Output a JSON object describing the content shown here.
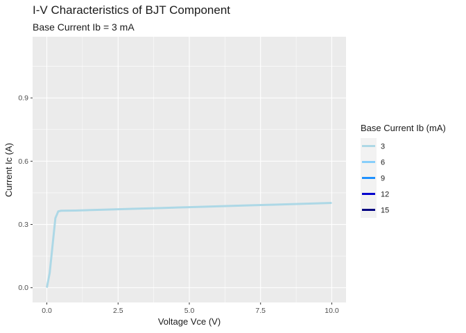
{
  "chart_data": {
    "type": "line",
    "title": "I-V Characteristics of BJT Component",
    "subtitle": "Base Current Ib = 3 mA",
    "xlabel": "Voltage Vce (V)",
    "ylabel": "Current Ic (A)",
    "xlim": [
      -0.5,
      10.5
    ],
    "ylim": [
      -0.07,
      1.19
    ],
    "x_ticks": [
      0.0,
      2.5,
      5.0,
      7.5,
      10.0
    ],
    "x_tick_labels": [
      "0.0",
      "2.5",
      "5.0",
      "7.5",
      "10.0"
    ],
    "y_ticks": [
      0.0,
      0.3,
      0.6,
      0.9
    ],
    "y_tick_labels": [
      "0.0",
      "0.3",
      "0.6",
      "0.9"
    ],
    "grid": true,
    "legend": {
      "title": "Base Current Ib (mA)",
      "placement": "right",
      "entries": [
        {
          "label": "3",
          "color": "#add8e6"
        },
        {
          "label": "6",
          "color": "#87cefa"
        },
        {
          "label": "9",
          "color": "#1e90ff"
        },
        {
          "label": "12",
          "color": "#0000cd"
        },
        {
          "label": "15",
          "color": "#000080"
        }
      ]
    },
    "series": [
      {
        "name": "3",
        "color": "#add8e6",
        "x": [
          0.0,
          0.1,
          0.2,
          0.3,
          0.4,
          0.5,
          1.0,
          2.0,
          3.0,
          4.0,
          5.0,
          6.0,
          7.0,
          8.0,
          9.0,
          10.0
        ],
        "y": [
          0.0,
          0.07,
          0.2,
          0.33,
          0.362,
          0.365,
          0.366,
          0.37,
          0.374,
          0.378,
          0.382,
          0.386,
          0.39,
          0.394,
          0.398,
          0.402
        ]
      }
    ]
  },
  "colors": {
    "panel_background": "#ebebeb",
    "grid_major": "#ffffff",
    "legend_key_background": "#f2f2f2"
  }
}
